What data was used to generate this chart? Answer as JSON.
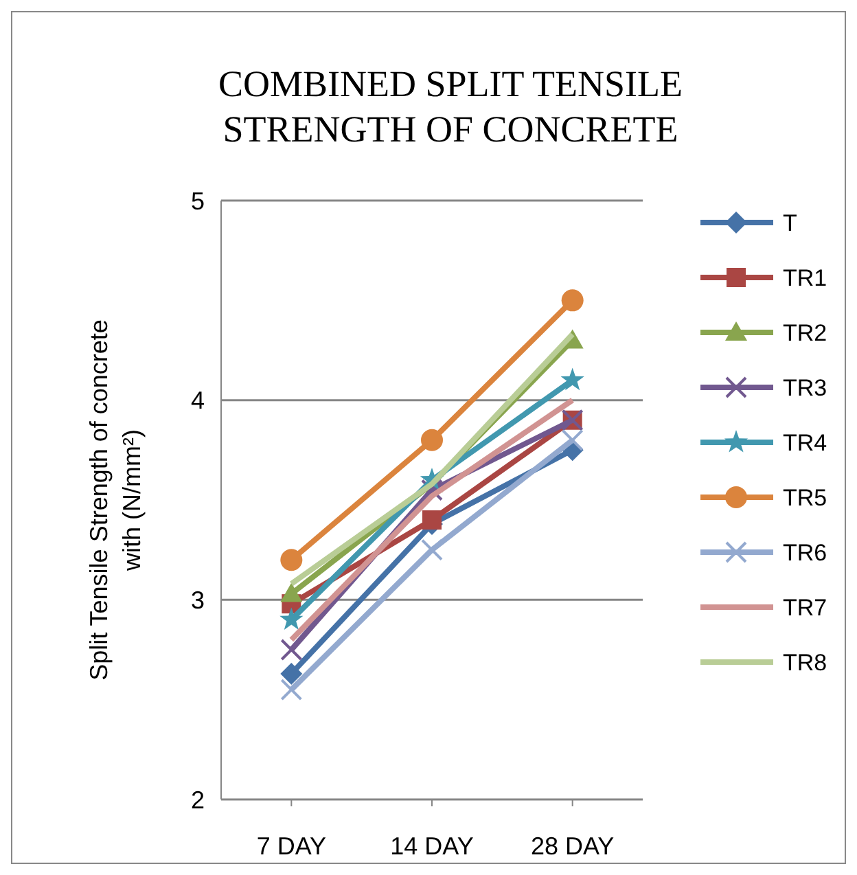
{
  "chart_data": {
    "type": "line",
    "title": "COMBINED SPLIT TENSILE STRENGTH OF CONCRETE",
    "ylabel": "Split Tensile Strength of concrete with (N/mm²)",
    "categories": [
      "7 DAY",
      "14 DAY",
      "28 DAY"
    ],
    "ylim": [
      2,
      5
    ],
    "yticks": [
      2,
      3,
      4,
      5
    ],
    "grid": "y",
    "legend": "right",
    "series": [
      {
        "name": "T",
        "color": "#4572a7",
        "marker": "diamond",
        "values": [
          2.63,
          3.38,
          3.75
        ]
      },
      {
        "name": "TR1",
        "color": "#aa4643",
        "marker": "square",
        "values": [
          2.98,
          3.4,
          3.9
        ]
      },
      {
        "name": "TR2",
        "color": "#89a54e",
        "marker": "triangle",
        "values": [
          3.03,
          3.58,
          4.3
        ]
      },
      {
        "name": "TR3",
        "color": "#71588f",
        "marker": "cross",
        "values": [
          2.75,
          3.55,
          3.9
        ]
      },
      {
        "name": "TR4",
        "color": "#4198af",
        "marker": "star",
        "values": [
          2.9,
          3.6,
          4.1
        ]
      },
      {
        "name": "TR5",
        "color": "#db843d",
        "marker": "circle",
        "values": [
          3.2,
          3.8,
          4.5
        ]
      },
      {
        "name": "TR6",
        "color": "#93a9cf",
        "marker": "cross",
        "values": [
          2.55,
          3.25,
          3.8
        ]
      },
      {
        "name": "TR7",
        "color": "#d19392",
        "marker": "none",
        "values": [
          2.8,
          3.52,
          4.0
        ]
      },
      {
        "name": "TR8",
        "color": "#b9cd96",
        "marker": "none",
        "values": [
          3.08,
          3.58,
          4.33
        ]
      }
    ]
  }
}
